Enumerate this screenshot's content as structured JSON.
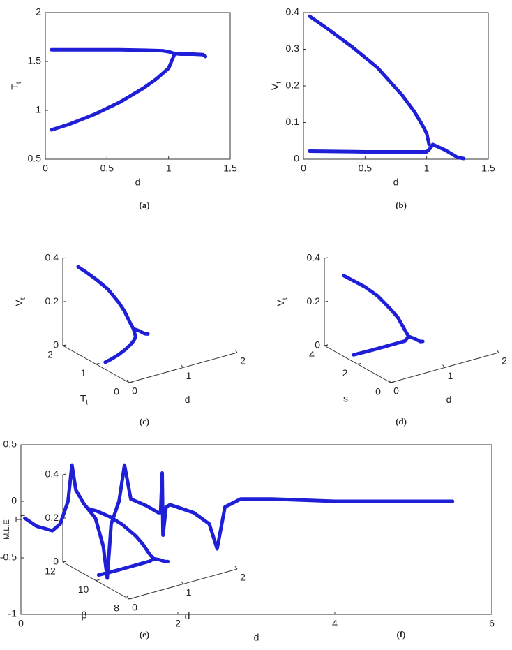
{
  "chart_data": [
    {
      "type": "line",
      "caption": "(a)",
      "xlabel": "d",
      "ylabel": {
        "text": "T",
        "sub": "t"
      },
      "xlim": [
        0,
        1.5
      ],
      "xticks": [
        0,
        0.5,
        1,
        1.5
      ],
      "ylim": [
        0.5,
        2
      ],
      "yticks": [
        0.5,
        1,
        1.5,
        2
      ],
      "series": [
        {
          "color": "#1f1fd8",
          "x": [
            0.05,
            0.2,
            0.4,
            0.6,
            0.8,
            0.95,
            1.0,
            1.05,
            1.1,
            1.2,
            1.28,
            1.3
          ],
          "y": [
            1.62,
            1.62,
            1.62,
            1.62,
            1.615,
            1.61,
            1.6,
            1.58,
            1.575,
            1.575,
            1.57,
            1.55
          ]
        },
        {
          "color": "#1f1fd8",
          "x": [
            0.05,
            0.2,
            0.4,
            0.6,
            0.8,
            0.9,
            1.0,
            1.03,
            1.05
          ],
          "y": [
            0.8,
            0.86,
            0.96,
            1.08,
            1.23,
            1.32,
            1.43,
            1.52,
            1.58
          ]
        }
      ]
    },
    {
      "type": "line",
      "caption": "(b)",
      "xlabel": "d",
      "ylabel": {
        "text": "V",
        "sub": "t"
      },
      "xlim": [
        0,
        1.5
      ],
      "xticks": [
        0,
        0.5,
        1,
        1.5
      ],
      "ylim": [
        0,
        0.4
      ],
      "yticks": [
        0,
        0.1,
        0.2,
        0.3,
        0.4
      ],
      "series": [
        {
          "color": "#1f1fd8",
          "x": [
            0.05,
            0.2,
            0.4,
            0.6,
            0.8,
            0.9,
            0.97,
            1.0,
            1.02
          ],
          "y": [
            0.39,
            0.355,
            0.305,
            0.25,
            0.175,
            0.13,
            0.09,
            0.07,
            0.04
          ]
        },
        {
          "color": "#1f1fd8",
          "x": [
            0.05,
            0.5,
            0.9,
            1.0,
            1.03,
            1.05
          ],
          "y": [
            0.022,
            0.02,
            0.02,
            0.02,
            0.03,
            0.04
          ]
        },
        {
          "color": "#1f1fd8",
          "x": [
            1.05,
            1.15,
            1.25,
            1.3
          ],
          "y": [
            0.04,
            0.025,
            0.005,
            0.002
          ]
        }
      ]
    },
    {
      "type": "scatter3d",
      "caption": "(c)",
      "xlabel": "d",
      "ylabel": {
        "text": "T",
        "sub": "t"
      },
      "zlabel": {
        "text": "V",
        "sub": "t"
      },
      "xlim": [
        0,
        2
      ],
      "xticks": [
        0,
        1,
        2
      ],
      "ylim": [
        0,
        2
      ],
      "yticks": [
        0,
        1,
        2
      ],
      "zlim": [
        0,
        0.4
      ],
      "zticks": [
        0,
        0.2,
        0.4
      ],
      "series": [
        {
          "color": "#1f1fd8",
          "x": [
            0.05,
            0.2,
            0.4,
            0.6,
            0.8,
            0.9,
            1.0,
            1.05,
            1.15,
            1.25,
            1.3
          ],
          "y": [
            1.62,
            1.62,
            1.62,
            1.62,
            1.615,
            1.61,
            1.6,
            1.58,
            1.575,
            1.57,
            1.55
          ],
          "z": [
            0.39,
            0.355,
            0.305,
            0.25,
            0.175,
            0.13,
            0.07,
            0.04,
            0.025,
            0.005,
            0.002
          ]
        },
        {
          "color": "#1f1fd8",
          "x": [
            0.05,
            0.2,
            0.4,
            0.6,
            0.8,
            0.9,
            1.0,
            1.03,
            1.05
          ],
          "y": [
            0.8,
            0.86,
            0.96,
            1.08,
            1.23,
            1.32,
            1.43,
            1.52,
            1.58
          ],
          "z": [
            0.022,
            0.021,
            0.02,
            0.02,
            0.02,
            0.02,
            0.02,
            0.03,
            0.04
          ]
        }
      ]
    },
    {
      "type": "scatter3d",
      "caption": "(d)",
      "xlabel": "d",
      "ylabel": {
        "text": "s"
      },
      "zlabel": {
        "text": "V",
        "sub": "t"
      },
      "xlim": [
        0,
        2
      ],
      "xticks": [
        0,
        1,
        2
      ],
      "ylim": [
        0,
        4
      ],
      "yticks": [
        0,
        2,
        4
      ],
      "zlim": [
        0,
        0.4
      ],
      "zticks": [
        0,
        0.2,
        0.4
      ],
      "series": [
        {
          "color": "#1f1fd8",
          "x": [
            0.05,
            0.2,
            0.4,
            0.6,
            0.8,
            0.9,
            1.0,
            1.05,
            1.15,
            1.25,
            1.3
          ],
          "y": [
            3.0,
            2.95,
            2.85,
            2.75,
            2.6,
            2.5,
            2.4,
            2.35,
            2.3,
            2.3,
            2.3
          ],
          "z": [
            0.36,
            0.33,
            0.29,
            0.24,
            0.17,
            0.13,
            0.07,
            0.04,
            0.025,
            0.005,
            0.002
          ]
        },
        {
          "color": "#1f1fd8",
          "x": [
            0.05,
            0.2,
            0.4,
            0.6,
            0.8,
            0.9,
            1.0,
            1.03,
            1.05
          ],
          "y": [
            2.4,
            2.4,
            2.4,
            2.4,
            2.4,
            2.4,
            2.4,
            2.38,
            2.35
          ],
          "z": [
            0.022,
            0.021,
            0.02,
            0.02,
            0.02,
            0.02,
            0.02,
            0.03,
            0.04
          ]
        }
      ]
    },
    {
      "type": "scatter3d",
      "caption": "(e)",
      "xlabel": "d",
      "ylabel": {
        "text": "β"
      },
      "zlabel": {
        "text": "T",
        "sub": "t"
      },
      "xlim": [
        0,
        2
      ],
      "xticks": [
        0,
        1,
        2
      ],
      "ylim": [
        8,
        12
      ],
      "yticks": [
        8,
        10,
        12
      ],
      "zlim": [
        0,
        0.4
      ],
      "zticks": [
        0,
        0.2,
        0.4
      ],
      "series": [
        {
          "color": "#1f1fd8",
          "x": [
            0.05,
            0.2,
            0.4,
            0.6,
            0.8,
            0.9,
            1.0,
            1.05,
            1.15,
            1.25,
            1.3
          ],
          "y": [
            10.6,
            10.55,
            10.45,
            10.35,
            10.2,
            10.1,
            10.0,
            9.95,
            9.9,
            9.9,
            9.9
          ],
          "z": [
            0.3,
            0.28,
            0.245,
            0.2,
            0.14,
            0.1,
            0.05,
            0.03,
            0.02,
            0.005,
            0.002
          ]
        },
        {
          "color": "#1f1fd8",
          "x": [
            0.05,
            0.2,
            0.4,
            0.6,
            0.8,
            0.9,
            1.0,
            1.03,
            1.05
          ],
          "y": [
            10.0,
            10.0,
            10.0,
            10.0,
            10.0,
            10.0,
            10.0,
            9.98,
            9.95
          ],
          "z": [
            0.022,
            0.021,
            0.02,
            0.02,
            0.02,
            0.02,
            0.02,
            0.025,
            0.03
          ]
        }
      ]
    },
    {
      "type": "line",
      "caption": "(f)",
      "xlabel": "d",
      "ylabel": {
        "text": "M.L.E"
      },
      "xlim": [
        0,
        6
      ],
      "xticks": [
        0,
        2,
        4,
        6
      ],
      "ylim": [
        -1,
        0.5
      ],
      "yticks": [
        -1,
        -0.5,
        0,
        0.5
      ],
      "series": [
        {
          "color": "#1f1fd8",
          "x": [
            0.05,
            0.2,
            0.4,
            0.5,
            0.6,
            0.65,
            0.7,
            0.8,
            0.95,
            1.05,
            1.1,
            1.15,
            1.25,
            1.32,
            1.4,
            1.6,
            1.75,
            1.78,
            1.8,
            1.81,
            1.85,
            1.9,
            2.2,
            2.4,
            2.5,
            2.6,
            2.8,
            3.2,
            4,
            5,
            5.5
          ],
          "y": [
            -0.15,
            -0.22,
            -0.26,
            -0.2,
            0,
            0.32,
            0.1,
            -0.02,
            -0.15,
            -0.4,
            -0.68,
            -0.2,
            0,
            0.32,
            0.02,
            -0.04,
            -0.1,
            -0.1,
            0.25,
            -0.3,
            -0.05,
            -0.03,
            -0.1,
            -0.2,
            -0.42,
            -0.05,
            0.02,
            0.02,
            0,
            0,
            0
          ]
        }
      ]
    }
  ]
}
